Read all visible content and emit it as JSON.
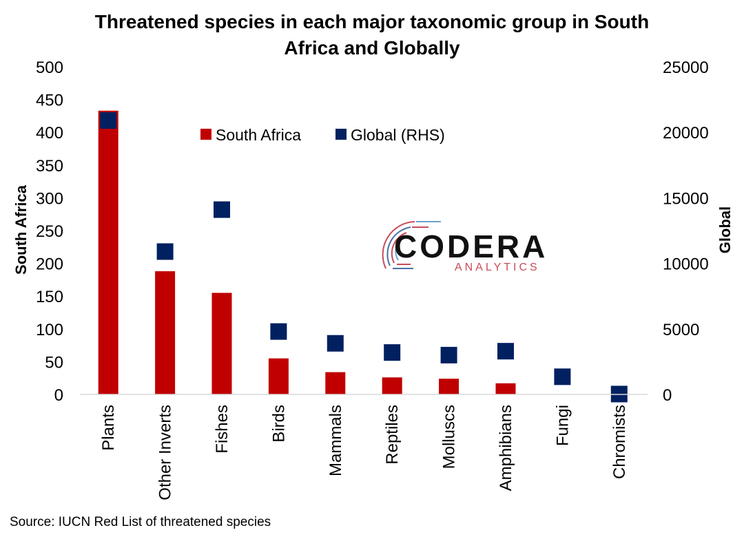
{
  "chart_data": {
    "type": "bar",
    "title": "Threatened species in each major taxonomic group in South Africa and Globally",
    "title_lines": [
      "Threatened species in each major taxonomic group in South",
      "Africa and Globally"
    ],
    "categories": [
      "Plants",
      "Other Inverts",
      "Fishes",
      "Birds",
      "Mammals",
      "Reptiles",
      "Molluscs",
      "Amphibians",
      "Fungi",
      "Chromists"
    ],
    "series": [
      {
        "name": "South Africa",
        "type": "bar",
        "axis": "left",
        "color": "#C00000",
        "values": [
          433,
          188,
          155,
          55,
          34,
          26,
          24,
          17,
          null,
          null
        ]
      },
      {
        "name": "Global (RHS)",
        "type": "scatter",
        "axis": "right",
        "color": "#002060",
        "values": [
          20900,
          10900,
          14100,
          4800,
          3900,
          3200,
          3000,
          3300,
          1350,
          30
        ]
      }
    ],
    "ylabel": "South Africa",
    "y2label": "Global",
    "ylim": [
      0,
      500
    ],
    "y2lim": [
      0,
      25000
    ],
    "yticks": [
      "0",
      "50",
      "100",
      "150",
      "200",
      "250",
      "300",
      "350",
      "400",
      "450",
      "500"
    ],
    "y2ticks": [
      "0",
      "5000",
      "10000",
      "15000",
      "20000",
      "25000"
    ],
    "legend": "top-center",
    "grid": false
  },
  "logo": {
    "name": "CODERA",
    "tagline": "ANALYTICS"
  },
  "source": "Source: IUCN Red List of threatened species"
}
